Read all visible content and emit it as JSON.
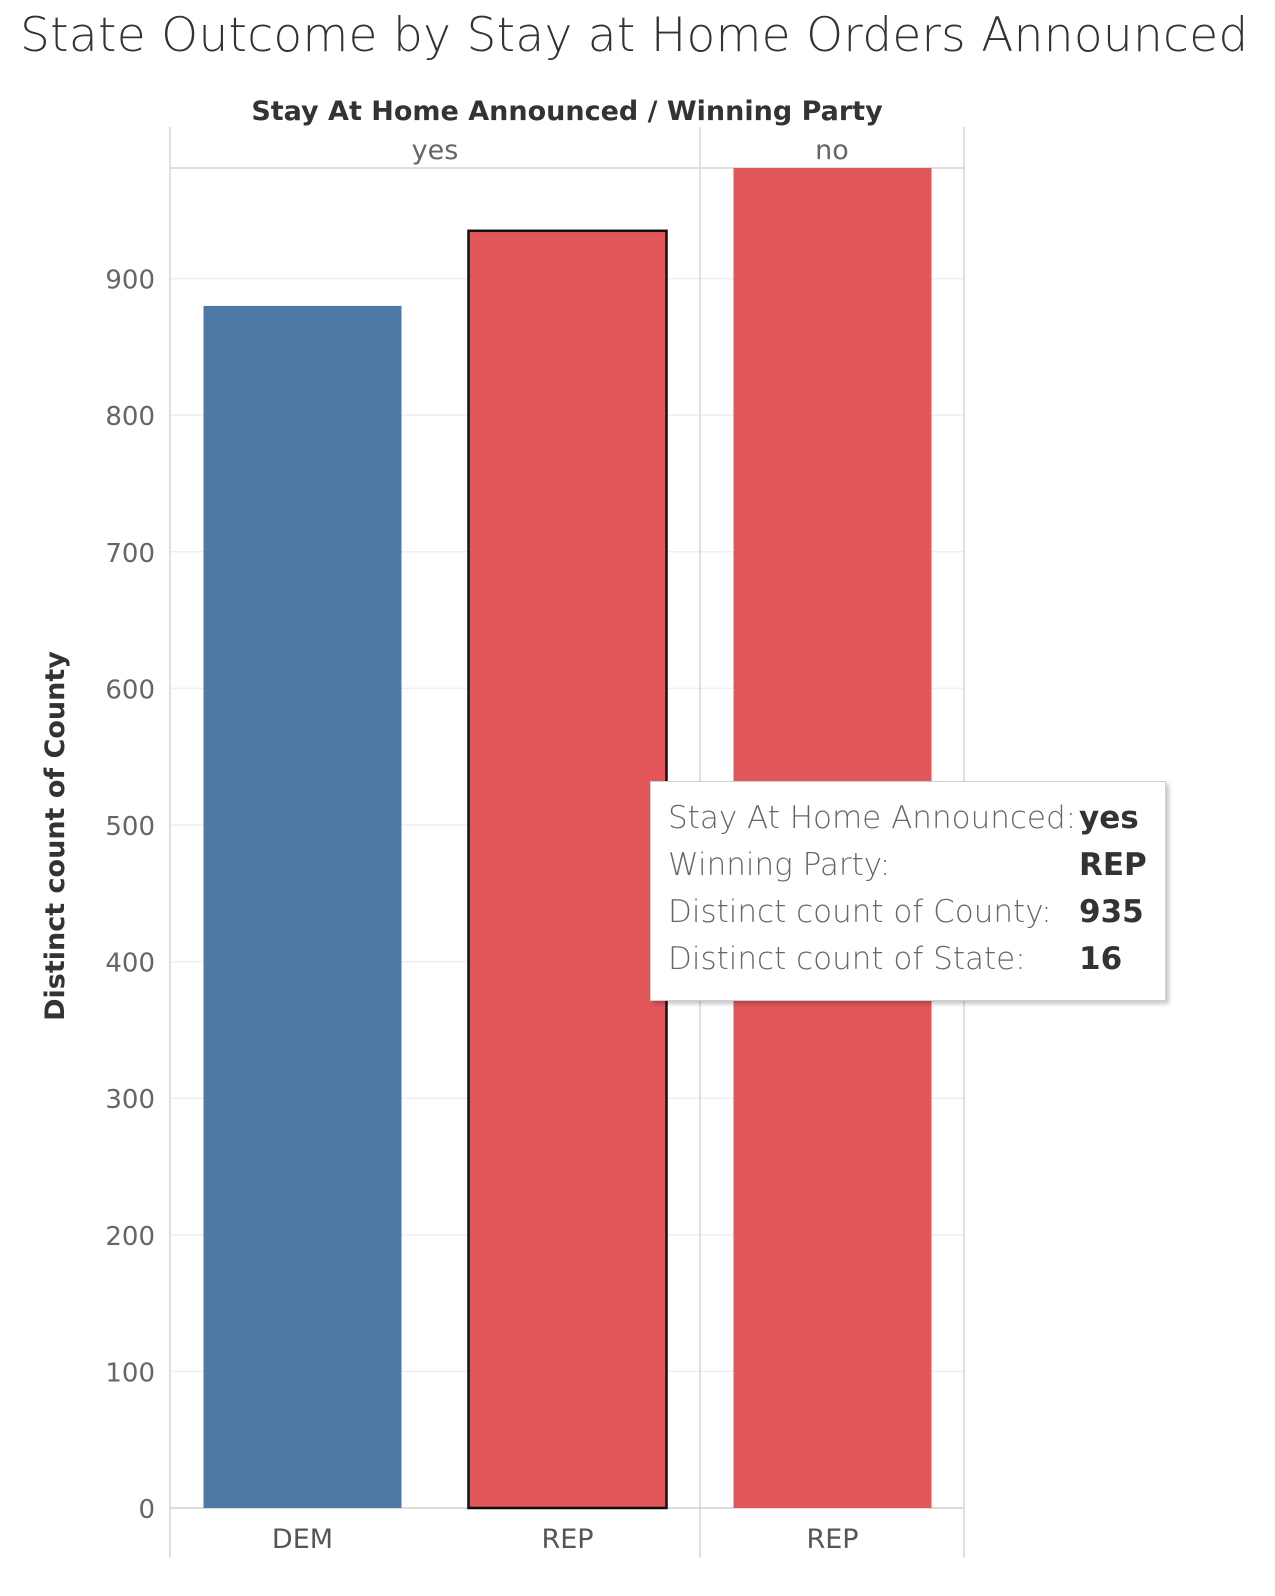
{
  "title": "State Outcome by Stay at Home Orders Announced",
  "chart_data": {
    "type": "bar",
    "title": "State Outcome by Stay at Home Orders Announced",
    "header": "Stay At Home Announced  /  Winning Party",
    "ylabel": "Distinct count of County",
    "ylim": [
      0,
      1000
    ],
    "yticks": [
      0,
      100,
      200,
      300,
      400,
      500,
      600,
      700,
      800,
      900
    ],
    "panels": [
      {
        "name": "yes",
        "categories": [
          "DEM",
          "REP"
        ],
        "values": [
          880,
          935
        ],
        "colors": [
          "#4e79a7",
          "#e1575a"
        ]
      },
      {
        "name": "no",
        "categories": [
          "REP"
        ],
        "values": [
          1000
        ],
        "colors": [
          "#e1575a"
        ]
      }
    ]
  },
  "tooltip": {
    "rows": [
      {
        "label": "Stay At Home Announced:",
        "value": "yes"
      },
      {
        "label": "Winning Party:",
        "value": "REP"
      },
      {
        "label": "Distinct count of County:",
        "value": "935"
      },
      {
        "label": "Distinct count of State:",
        "value": "16"
      }
    ]
  }
}
